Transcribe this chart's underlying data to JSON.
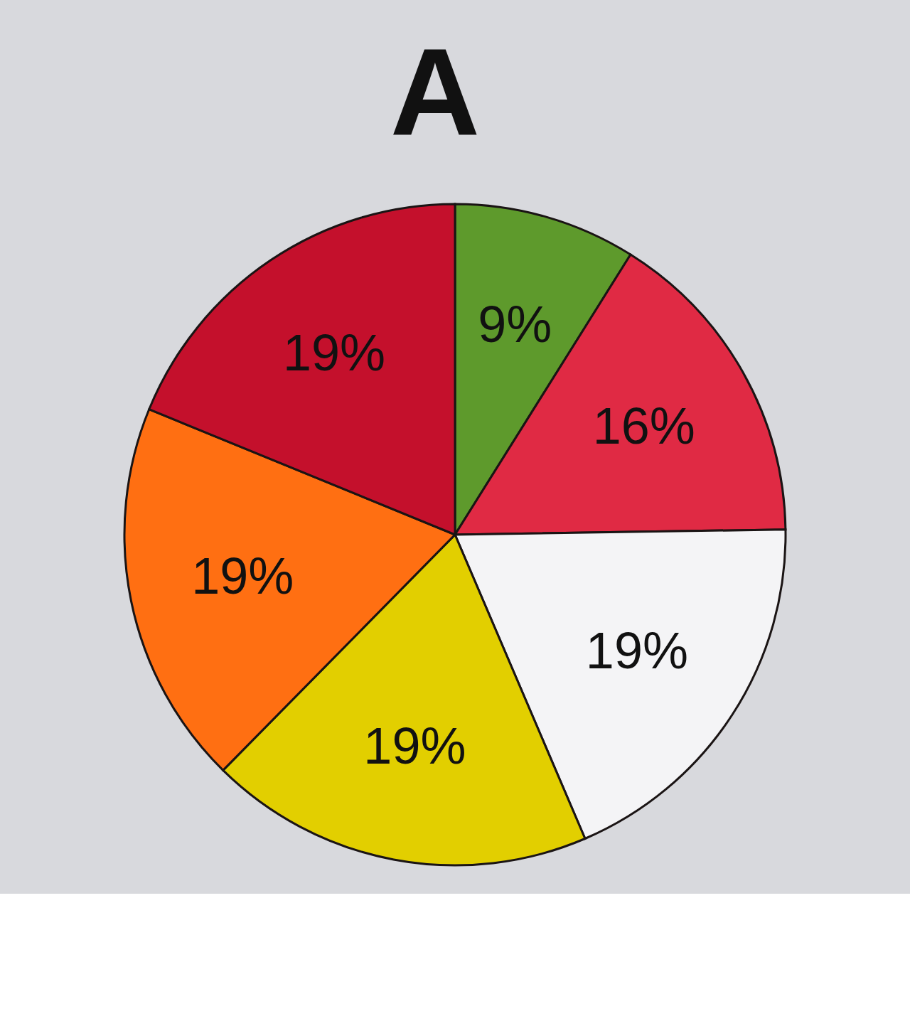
{
  "chart_data": {
    "type": "pie",
    "title": "A",
    "categories": [
      null,
      null,
      null,
      null,
      null,
      null
    ],
    "values": [
      9,
      16,
      19,
      19,
      19,
      19
    ],
    "value_labels": [
      "9%",
      "16%",
      "19%",
      "19%",
      "19%",
      "19%"
    ],
    "colors": [
      "#5e9a2c",
      "#e02a44",
      "#f4f4f6",
      "#e2cf00",
      "#ff6f12",
      "#c4102c"
    ]
  }
}
